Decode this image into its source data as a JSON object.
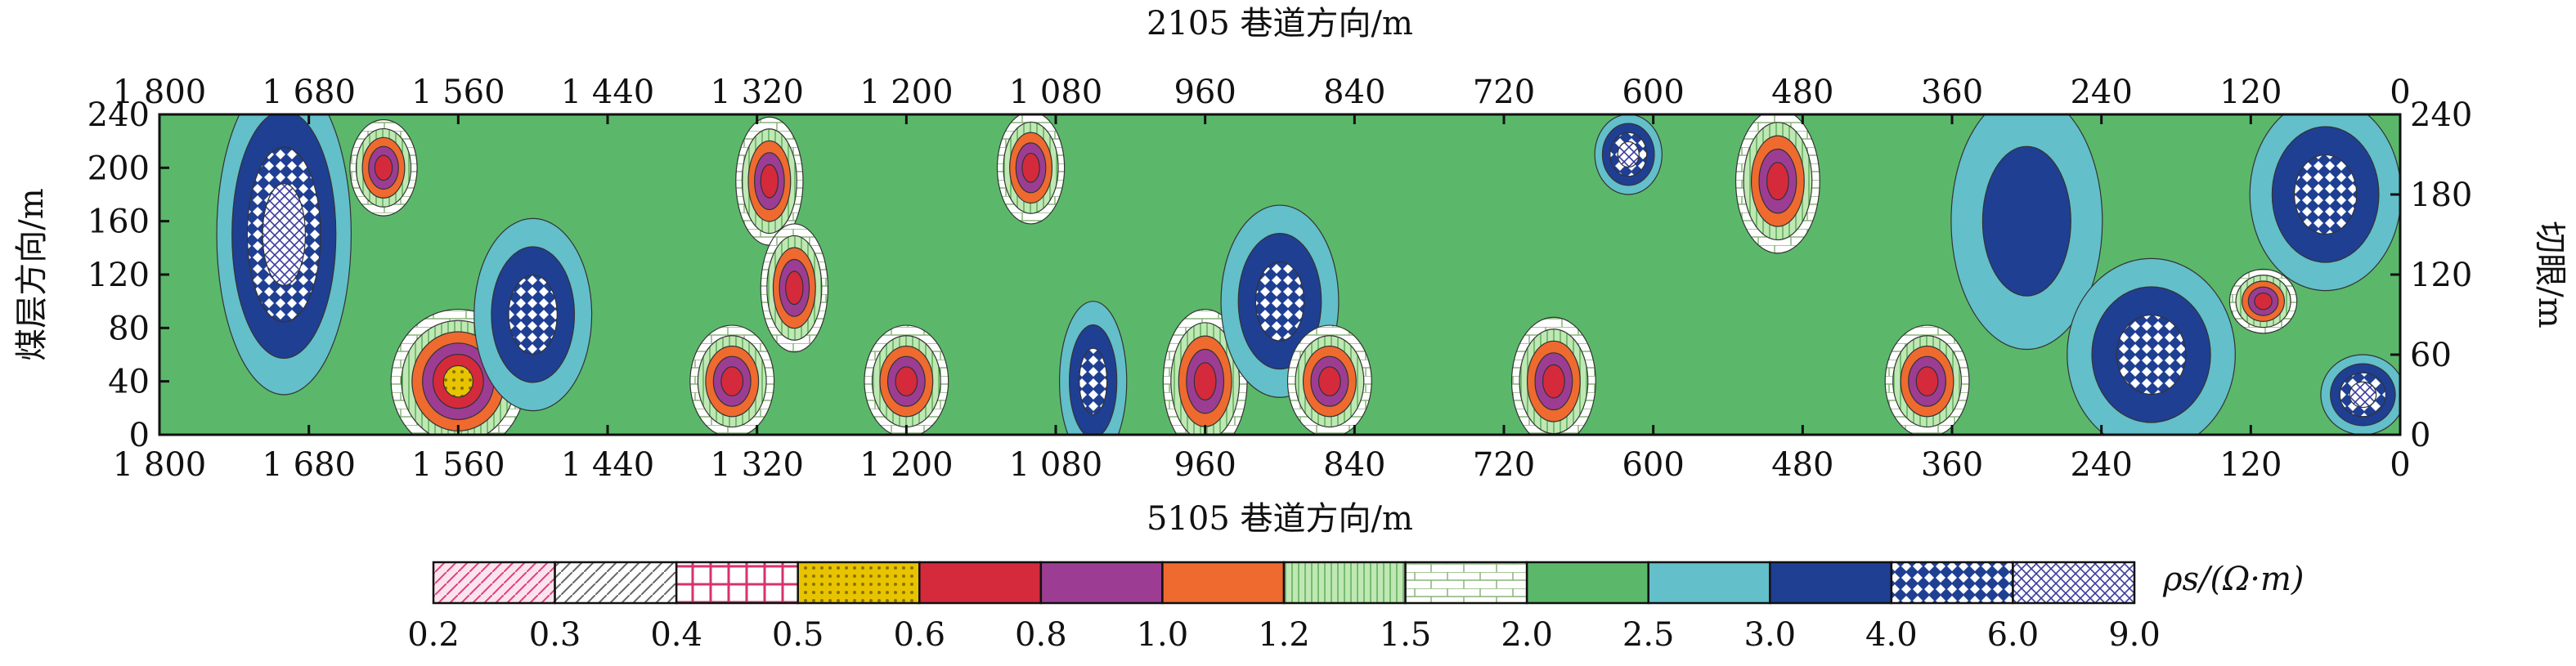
{
  "chart_data": {
    "type": "heatmap",
    "title": "",
    "xlabel_top": "2105 巷道方向/m",
    "xlabel_bottom": "5105 巷道方向/m",
    "ylabel_left": "煤层方向/m",
    "ylabel_right": "切眼/m",
    "x_ticks_top": [
      "1 800",
      "1 680",
      "1 560",
      "1 440",
      "1 320",
      "1 200",
      "1 080",
      "960",
      "840",
      "720",
      "600",
      "480",
      "360",
      "240",
      "120",
      "0"
    ],
    "x_ticks_bottom": [
      "1 800",
      "1 680",
      "1 560",
      "1 440",
      "1 320",
      "1 200",
      "1 080",
      "960",
      "840",
      "720",
      "600",
      "480",
      "360",
      "240",
      "120",
      "0"
    ],
    "x_tick_values": [
      1800,
      1680,
      1560,
      1440,
      1320,
      1200,
      1080,
      960,
      840,
      720,
      600,
      480,
      360,
      240,
      120,
      0
    ],
    "y_ticks_left": [
      "0",
      "40",
      "80",
      "120",
      "160",
      "200",
      "240"
    ],
    "y_tick_values_left": [
      0,
      40,
      80,
      120,
      160,
      200,
      240
    ],
    "y_ticks_right": [
      "0",
      "60",
      "120",
      "180",
      "240"
    ],
    "y_tick_values_right": [
      0,
      60,
      120,
      180,
      240
    ],
    "xlim": [
      1800,
      0
    ],
    "ylim": [
      0,
      240
    ],
    "colorbar_label": "ρs/(Ω·m)",
    "colorbar_ticks": [
      "0.2",
      "0.3",
      "0.4",
      "0.5",
      "0.6",
      "0.8",
      "1.0",
      "1.2",
      "1.5",
      "2.0",
      "2.5",
      "3.0",
      "4.0",
      "6.0",
      "9.0"
    ],
    "levels": [
      0.2,
      0.3,
      0.4,
      0.5,
      0.6,
      0.8,
      1.0,
      1.2,
      1.5,
      2.0,
      2.5,
      3.0,
      4.0,
      6.0,
      9.0
    ],
    "level_fills": [
      "#f6d6e4",
      "#ffffff",
      "#ffffff",
      "#e8c300",
      "#d42a3c",
      "#9c3d93",
      "#ef6a2e",
      "#bfe8b4",
      "#ffffff",
      "#5bb86a",
      "#63bfca",
      "#1f3f93",
      "#1f3f93",
      "#cfd0f0"
    ],
    "level_patterns": [
      "pink-hatch",
      "gray-hatch",
      "pink-grid",
      "yellow-dots",
      "solid",
      "solid",
      "solid",
      "vertical-lines",
      "brick",
      "solid",
      "solid",
      "solid",
      "blue-dots",
      "purple-crosshatch"
    ],
    "grid": false,
    "legend_position": "bottom",
    "anomalies": [
      {
        "x": 1700,
        "y": 150,
        "rx": 40,
        "ry": 100,
        "rho": 7.0
      },
      {
        "x": 1620,
        "y": 200,
        "rx": 20,
        "ry": 30,
        "rho": 0.7
      },
      {
        "x": 1560,
        "y": 40,
        "rx": 40,
        "ry": 45,
        "rho": 0.5
      },
      {
        "x": 1500,
        "y": 90,
        "rx": 35,
        "ry": 60,
        "rho": 4.5
      },
      {
        "x": 1340,
        "y": 40,
        "rx": 25,
        "ry": 35,
        "rho": 0.6
      },
      {
        "x": 1310,
        "y": 190,
        "rx": 20,
        "ry": 40,
        "rho": 0.7
      },
      {
        "x": 1290,
        "y": 110,
        "rx": 20,
        "ry": 40,
        "rho": 0.6
      },
      {
        "x": 1200,
        "y": 40,
        "rx": 25,
        "ry": 35,
        "rho": 0.6
      },
      {
        "x": 1100,
        "y": 200,
        "rx": 20,
        "ry": 35,
        "rho": 0.6
      },
      {
        "x": 1050,
        "y": 40,
        "rx": 20,
        "ry": 50,
        "rho": 4.5
      },
      {
        "x": 960,
        "y": 40,
        "rx": 25,
        "ry": 45,
        "rho": 0.6
      },
      {
        "x": 900,
        "y": 100,
        "rx": 35,
        "ry": 60,
        "rho": 4.5
      },
      {
        "x": 860,
        "y": 40,
        "rx": 25,
        "ry": 35,
        "rho": 0.6
      },
      {
        "x": 680,
        "y": 40,
        "rx": 25,
        "ry": 40,
        "rho": 0.6
      },
      {
        "x": 620,
        "y": 210,
        "rx": 20,
        "ry": 25,
        "rho": 6.0
      },
      {
        "x": 500,
        "y": 190,
        "rx": 25,
        "ry": 45,
        "rho": 0.7
      },
      {
        "x": 380,
        "y": 40,
        "rx": 25,
        "ry": 35,
        "rho": 0.7
      },
      {
        "x": 300,
        "y": 160,
        "rx": 45,
        "ry": 80,
        "rho": 3.5
      },
      {
        "x": 200,
        "y": 60,
        "rx": 50,
        "ry": 60,
        "rho": 4.5
      },
      {
        "x": 110,
        "y": 100,
        "rx": 20,
        "ry": 20,
        "rho": 0.6
      },
      {
        "x": 60,
        "y": 180,
        "rx": 45,
        "ry": 60,
        "rho": 5.0
      },
      {
        "x": 30,
        "y": 30,
        "rx": 25,
        "ry": 25,
        "rho": 6.0
      }
    ]
  }
}
